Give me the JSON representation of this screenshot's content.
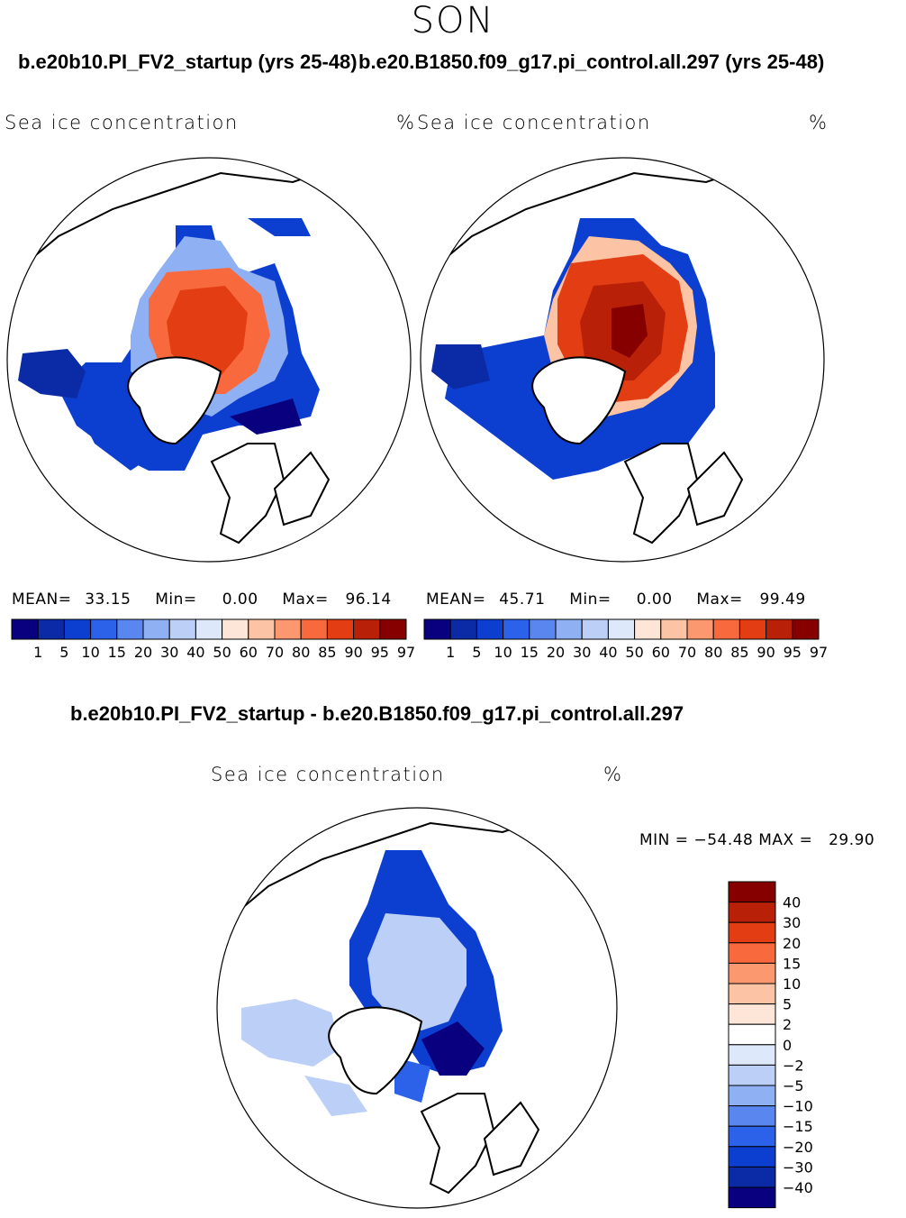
{
  "season": "SON",
  "case1_title": "b.e20b10.PI_FV2_startup (yrs 25-48)",
  "case2_title": "b.e20.B1850.f09_g17.pi_control.all.297 (yrs 25-48)",
  "diff_title": "b.e20b10.PI_FV2_startup - b.e20.B1850.f09_g17.pi_control.all.297",
  "var_label": "Sea ice concentration",
  "units": "%",
  "panel1": {
    "mean_label": "MEAN=",
    "mean": "33.15",
    "min_label": "Min=",
    "min": "0.00",
    "max_label": "Max=",
    "max": "96.14"
  },
  "panel2": {
    "mean_label": "MEAN=",
    "mean": "45.71",
    "min_label": "Min=",
    "min": "0.00",
    "max_label": "Max=",
    "max": "99.49"
  },
  "diff_stats": "MIN = −54.48 MAX =   29.90",
  "abs_colorbar": {
    "levels": [
      "1",
      "5",
      "10",
      "15",
      "20",
      "30",
      "40",
      "50",
      "60",
      "70",
      "80",
      "85",
      "90",
      "95",
      "97"
    ],
    "colors": [
      "#08007e",
      "#0a2aa6",
      "#0c3fcf",
      "#2c61ea",
      "#5a86ef",
      "#8fb0f3",
      "#bcd0f7",
      "#dde8fb",
      "#fde6d8",
      "#fcc3a5",
      "#fb9870",
      "#f86a3d",
      "#e33d14",
      "#b82107",
      "#860000"
    ]
  },
  "diff_colorbar": {
    "levels": [
      "40",
      "30",
      "20",
      "15",
      "10",
      "5",
      "2",
      "0",
      "−2",
      "−5",
      "−10",
      "−15",
      "−20",
      "−30",
      "−40"
    ],
    "colors": [
      "#860000",
      "#b82107",
      "#e33d14",
      "#f86a3d",
      "#fb9870",
      "#fcc3a5",
      "#fde6d8",
      "#ffffff",
      "#dde8fb",
      "#bcd0f7",
      "#8fb0f3",
      "#5a86ef",
      "#2c61ea",
      "#0c3fcf",
      "#0a2aa6",
      "#08007e"
    ]
  }
}
